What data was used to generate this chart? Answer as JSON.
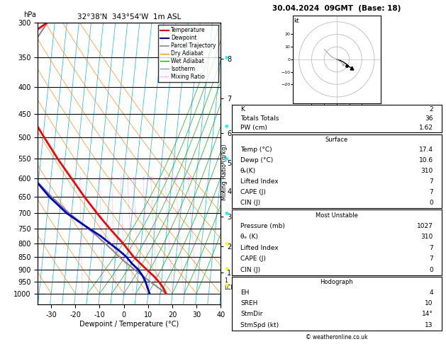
{
  "title_left": "32°38'N  343°54'W  1m ASL",
  "title_right": "30.04.2024  09GMT  (Base: 18)",
  "xlabel": "Dewpoint / Temperature (°C)",
  "pressure_levels": [
    300,
    350,
    400,
    450,
    500,
    550,
    600,
    650,
    700,
    750,
    800,
    850,
    900,
    950,
    1000
  ],
  "temp_ticks": [
    -30,
    -20,
    -10,
    0,
    10,
    20,
    30,
    40
  ],
  "isotherm_temps": [
    -40,
    -35,
    -30,
    -25,
    -20,
    -15,
    -10,
    -5,
    0,
    5,
    10,
    15,
    20,
    25,
    30,
    35,
    40,
    45,
    50
  ],
  "dry_adiabat_base_temps": [
    -40,
    -30,
    -20,
    -10,
    0,
    10,
    20,
    30,
    40,
    50,
    60,
    70
  ],
  "wet_adiabat_base_temps": [
    -15,
    -10,
    -5,
    0,
    5,
    10,
    15,
    20,
    25,
    30
  ],
  "mixing_ratio_vals": [
    1,
    2,
    3,
    4,
    5,
    6,
    8,
    10,
    15,
    20,
    28
  ],
  "temperature_profile_p": [
    1000,
    975,
    950,
    925,
    900,
    875,
    850,
    825,
    800,
    775,
    750,
    725,
    700,
    650,
    600,
    550,
    500,
    450,
    400,
    350,
    300
  ],
  "temperature_profile_t": [
    17.4,
    16.0,
    14.0,
    11.5,
    8.5,
    5.5,
    2.5,
    0.0,
    -2.5,
    -5.5,
    -8.5,
    -11.5,
    -14.5,
    -20.5,
    -26.5,
    -33.0,
    -39.5,
    -46.5,
    -54.0,
    -62.0,
    -43.0
  ],
  "dewpoint_profile_p": [
    1000,
    975,
    950,
    925,
    900,
    875,
    850,
    825,
    800,
    775,
    750,
    725,
    700,
    650,
    600,
    550,
    500,
    450,
    400,
    350,
    300
  ],
  "dewpoint_profile_t": [
    10.6,
    9.5,
    8.5,
    7.0,
    5.0,
    2.0,
    -0.5,
    -4.0,
    -8.0,
    -12.0,
    -17.0,
    -22.0,
    -27.0,
    -35.0,
    -42.0,
    -50.0,
    -56.0,
    -62.0,
    -67.0,
    -72.0,
    -65.0
  ],
  "parcel_profile_p": [
    1000,
    975,
    950,
    925,
    900,
    875,
    850,
    825,
    800,
    775,
    750,
    725,
    700,
    650,
    600,
    550,
    500,
    450,
    400,
    350,
    300
  ],
  "parcel_profile_t": [
    17.4,
    14.0,
    10.5,
    7.0,
    3.5,
    0.0,
    -3.5,
    -6.5,
    -10.0,
    -13.5,
    -17.5,
    -21.5,
    -26.0,
    -34.0,
    -42.0,
    -50.5,
    -59.0,
    -63.0,
    -58.0,
    -51.0,
    -43.0
  ],
  "lcl_pressure": 960,
  "stats": {
    "K": 2,
    "Totals_Totals": 36,
    "PW_cm": 1.62,
    "surface_temp": 17.4,
    "surface_dewp": 10.6,
    "surface_theta_e": 310,
    "surface_lifted_index": 7,
    "surface_CAPE": 7,
    "surface_CIN": 0,
    "mu_pressure": 1027,
    "mu_theta_e": 310,
    "mu_lifted_index": 7,
    "mu_CAPE": 7,
    "mu_CIN": 0,
    "EH": 4,
    "SREH": 10,
    "StmDir": "14°",
    "StmSpd_kt": 13
  },
  "colors": {
    "temperature": "#ff0000",
    "dewpoint": "#0000cc",
    "parcel": "#888888",
    "dry_adiabat": "#ff8800",
    "wet_adiabat": "#00aa00",
    "isotherm": "#00aaff",
    "mixing_ratio": "#ff44ff",
    "background": "#ffffff"
  }
}
